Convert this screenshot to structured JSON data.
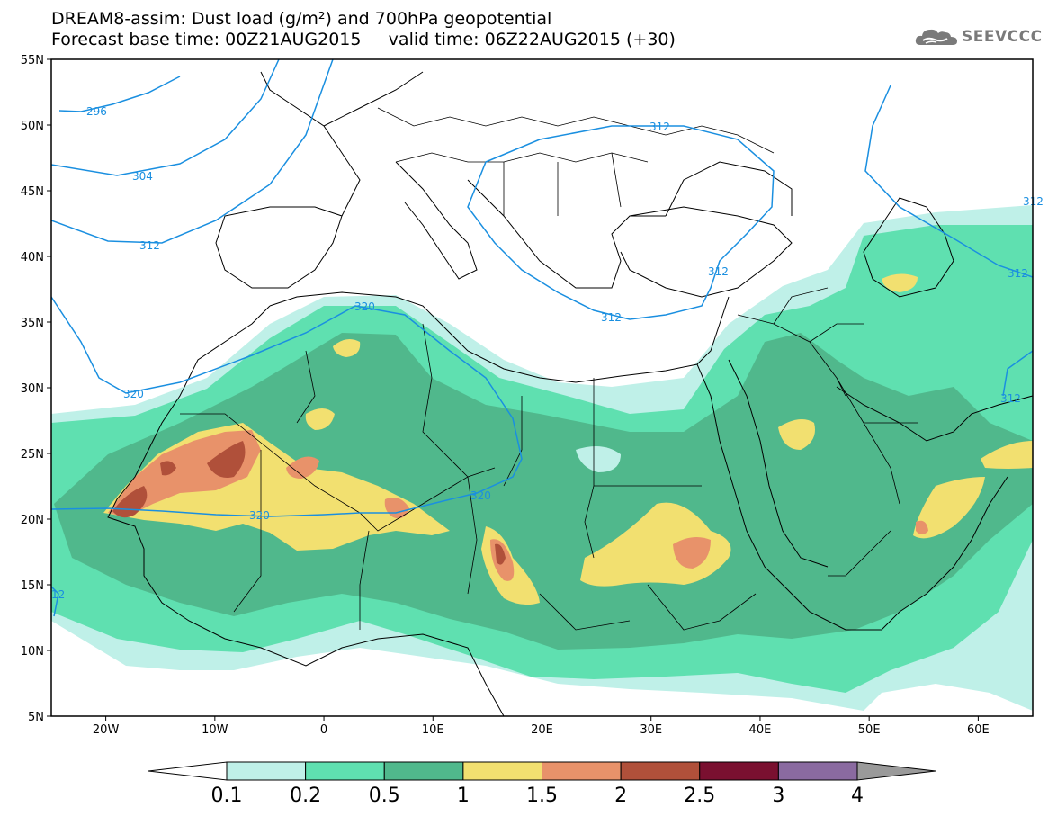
{
  "title": {
    "line1": "DREAM8-assim: Dust load (g/m²) and 700hPa geopotential",
    "line2": "Forecast base time: 00Z21AUG2015     valid time: 06Z22AUG2015 (+30)"
  },
  "logo": {
    "text": "SEEVCCC",
    "icon": "cloud-logo-icon"
  },
  "map": {
    "lat_labels": [
      "55N",
      "50N",
      "45N",
      "40N",
      "35N",
      "30N",
      "25N",
      "20N",
      "15N",
      "10N",
      "5N"
    ],
    "lon_labels": [
      "20W",
      "10W",
      "0",
      "10E",
      "20E",
      "30E",
      "40E",
      "50E",
      "60E"
    ],
    "lat_range": [
      5,
      55
    ],
    "lon_range": [
      -25,
      65
    ],
    "contour_color": "#1a8fe0",
    "contour_labels": [
      "296",
      "304",
      "312",
      "312",
      "312",
      "312",
      "312",
      "320",
      "320",
      "320",
      "320",
      "312",
      "312",
      "12"
    ]
  },
  "colorbar": {
    "levels": [
      "0.1",
      "0.2",
      "0.5",
      "1",
      "1.5",
      "2",
      "2.5",
      "3",
      "4"
    ],
    "colors": [
      "#ffffff",
      "#bff0e8",
      "#5fe0b0",
      "#50b88c",
      "#f2e070",
      "#e8926a",
      "#b0503a",
      "#7a1030",
      "#8a6aa0",
      "#9a9a9a"
    ]
  }
}
